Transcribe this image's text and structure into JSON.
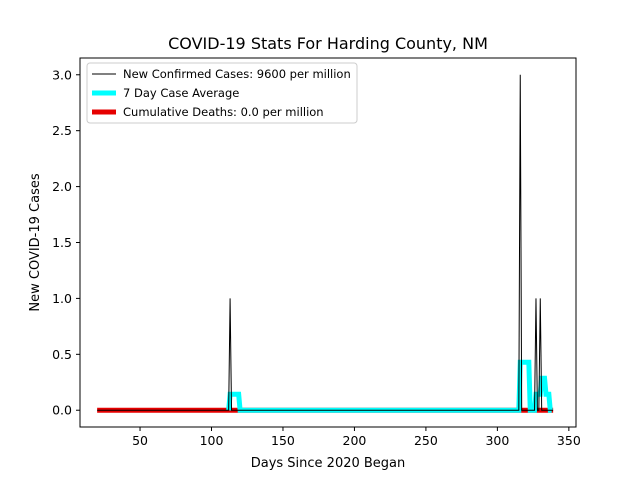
{
  "chart_data": {
    "type": "line",
    "title": "COVID-19 Stats For Harding County, NM",
    "xlabel": "Days Since 2020 Began",
    "ylabel": "New COVID-19 Cases",
    "xlim": [
      8,
      355
    ],
    "ylim": [
      -0.15,
      3.15
    ],
    "xticks": [
      50,
      100,
      150,
      200,
      250,
      300,
      350
    ],
    "xtick_labels": [
      "50",
      "100",
      "150",
      "200",
      "250",
      "300",
      "350"
    ],
    "yticks": [
      0.0,
      0.5,
      1.0,
      1.5,
      2.0,
      2.5,
      3.0
    ],
    "ytick_labels": [
      "0.0",
      "0.5",
      "1.0",
      "1.5",
      "2.0",
      "2.5",
      "3.0"
    ],
    "grid": false,
    "legend_position": "top-left",
    "series": [
      {
        "name": "New Confirmed Cases: 9600 per million",
        "color": "#000000",
        "style": "thin",
        "x": [
          20,
          112,
          113,
          114,
          315,
          316,
          317,
          326,
          327,
          328,
          329,
          330,
          331,
          339
        ],
        "y": [
          0,
          0,
          1,
          0,
          0,
          3,
          0,
          0,
          1,
          0,
          0,
          1,
          0,
          0
        ]
      },
      {
        "name": "7 Day Case Average",
        "color": "#00ffff",
        "style": "thick",
        "x": [
          112,
          113,
          119,
          120,
          315,
          316,
          322,
          323,
          326,
          327,
          330,
          331,
          333,
          334,
          336,
          337,
          338
        ],
        "y": [
          0,
          0.143,
          0.143,
          0,
          0,
          0.429,
          0.429,
          0,
          0,
          0.143,
          0.143,
          0.286,
          0.286,
          0.143,
          0.143,
          0,
          0
        ]
      },
      {
        "name": "Cumulative Deaths: 0.0 per million",
        "color": "#e60000",
        "style": "thick",
        "x": [
          20,
          339
        ],
        "y": [
          0,
          0
        ]
      }
    ]
  }
}
